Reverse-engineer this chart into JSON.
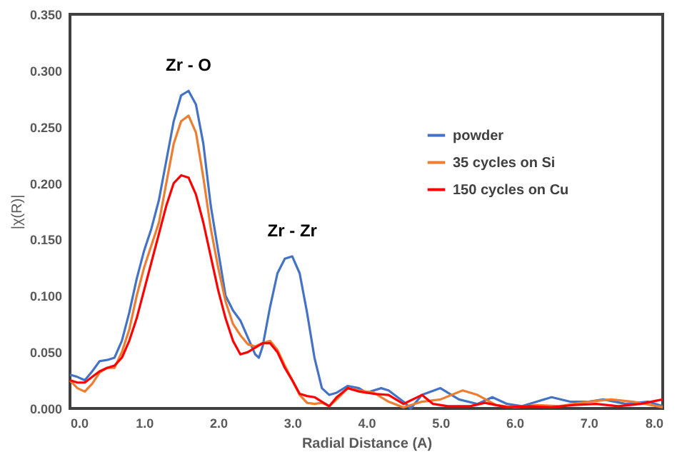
{
  "chart_data": {
    "type": "line",
    "xlabel": "Radial Distance (A)",
    "ylabel": "|χ(R)|",
    "xlim": [
      0,
      8
    ],
    "xticks": [
      {
        "value": 0,
        "label": "0.0"
      },
      {
        "value": 1,
        "label": "1.0"
      },
      {
        "value": 2,
        "label": "2.0"
      },
      {
        "value": 3,
        "label": "3.0"
      },
      {
        "value": 4,
        "label": "4.0"
      },
      {
        "value": 5,
        "label": "5.0"
      },
      {
        "value": 6,
        "label": "6.0"
      },
      {
        "value": 7,
        "label": "7.0"
      },
      {
        "value": 8,
        "label": "8.0"
      }
    ],
    "ylim": [
      0,
      0.35
    ],
    "yticks": [
      {
        "value": 0,
        "label": "0.000"
      },
      {
        "value": 0.05,
        "label": "0.050"
      },
      {
        "value": 0.1,
        "label": "0.100"
      },
      {
        "value": 0.15,
        "label": "0.150"
      },
      {
        "value": 0.2,
        "label": "0.200"
      },
      {
        "value": 0.25,
        "label": "0.250"
      },
      {
        "value": 0.3,
        "label": "0.300"
      },
      {
        "value": 0.35,
        "label": "0.350"
      }
    ],
    "grid": false,
    "legend": "right",
    "marker": "none",
    "line_style": "solid",
    "annotations": [
      {
        "text": "Zr - O",
        "x": 1.6,
        "y": 0.282
      },
      {
        "text": "Zr - Zr",
        "x": 3.0,
        "y": 0.135
      }
    ],
    "series": [
      {
        "name": "powder",
        "color": "#4472c4",
        "x": [
          0,
          0.1,
          0.2,
          0.3,
          0.4,
          0.5,
          0.6,
          0.7,
          0.8,
          0.9,
          1.0,
          1.1,
          1.2,
          1.3,
          1.4,
          1.5,
          1.6,
          1.7,
          1.8,
          1.9,
          2.0,
          2.1,
          2.2,
          2.3,
          2.4,
          2.5,
          2.55,
          2.6,
          2.7,
          2.8,
          2.9,
          3.0,
          3.1,
          3.2,
          3.3,
          3.4,
          3.5,
          3.6,
          3.75,
          3.9,
          4.0,
          4.2,
          4.3,
          4.5,
          4.6,
          4.75,
          5.0,
          5.25,
          5.5,
          5.7,
          5.9,
          6.1,
          6.3,
          6.5,
          6.75,
          7.0,
          7.2,
          7.5,
          7.8,
          8.0
        ],
        "values": [
          0.03,
          0.028,
          0.025,
          0.033,
          0.042,
          0.043,
          0.045,
          0.06,
          0.085,
          0.115,
          0.14,
          0.16,
          0.185,
          0.22,
          0.255,
          0.278,
          0.282,
          0.27,
          0.235,
          0.18,
          0.14,
          0.1,
          0.087,
          0.078,
          0.063,
          0.048,
          0.045,
          0.055,
          0.09,
          0.12,
          0.133,
          0.135,
          0.12,
          0.085,
          0.045,
          0.018,
          0.012,
          0.014,
          0.02,
          0.018,
          0.014,
          0.018,
          0.016,
          0.006,
          0.0,
          0.012,
          0.018,
          0.008,
          0.004,
          0.01,
          0.004,
          0.002,
          0.006,
          0.01,
          0.006,
          0.006,
          0.008,
          0.004,
          0.006,
          0.002
        ]
      },
      {
        "name": "35 cycles on Si",
        "color": "#ed7d31",
        "x": [
          0,
          0.1,
          0.2,
          0.3,
          0.4,
          0.5,
          0.6,
          0.7,
          0.8,
          0.9,
          1.0,
          1.1,
          1.2,
          1.3,
          1.4,
          1.5,
          1.6,
          1.7,
          1.8,
          1.9,
          2.0,
          2.1,
          2.2,
          2.3,
          2.4,
          2.5,
          2.6,
          2.7,
          2.8,
          2.9,
          3.0,
          3.1,
          3.2,
          3.3,
          3.4,
          3.5,
          3.6,
          3.75,
          3.9,
          4.1,
          4.3,
          4.5,
          4.75,
          5.0,
          5.3,
          5.5,
          5.75,
          6.0,
          6.3,
          6.6,
          7.0,
          7.3,
          7.6,
          8.0
        ],
        "values": [
          0.025,
          0.018,
          0.015,
          0.022,
          0.032,
          0.036,
          0.036,
          0.05,
          0.07,
          0.1,
          0.125,
          0.145,
          0.165,
          0.2,
          0.235,
          0.255,
          0.26,
          0.245,
          0.205,
          0.16,
          0.125,
          0.095,
          0.075,
          0.065,
          0.057,
          0.055,
          0.058,
          0.06,
          0.052,
          0.038,
          0.025,
          0.012,
          0.005,
          0.004,
          0.005,
          0.002,
          0.008,
          0.018,
          0.016,
          0.014,
          0.006,
          0.001,
          0.006,
          0.008,
          0.016,
          0.012,
          0.003,
          0.001,
          0.003,
          0.002,
          0.006,
          0.008,
          0.006,
          0.001
        ]
      },
      {
        "name": "150 cycles on Cu",
        "color": "#ff0000",
        "x": [
          0,
          0.1,
          0.2,
          0.3,
          0.4,
          0.5,
          0.6,
          0.7,
          0.8,
          0.9,
          1.0,
          1.1,
          1.2,
          1.3,
          1.4,
          1.5,
          1.6,
          1.7,
          1.8,
          1.9,
          2.0,
          2.1,
          2.2,
          2.3,
          2.4,
          2.5,
          2.6,
          2.7,
          2.8,
          2.9,
          3.0,
          3.1,
          3.2,
          3.3,
          3.4,
          3.5,
          3.6,
          3.75,
          3.9,
          4.1,
          4.3,
          4.5,
          4.75,
          4.9,
          5.1,
          5.4,
          5.6,
          5.9,
          6.2,
          6.5,
          6.8,
          7.1,
          7.4,
          7.7,
          8.0
        ],
        "values": [
          0.025,
          0.023,
          0.023,
          0.028,
          0.033,
          0.036,
          0.038,
          0.045,
          0.06,
          0.08,
          0.105,
          0.13,
          0.155,
          0.18,
          0.2,
          0.207,
          0.205,
          0.19,
          0.165,
          0.135,
          0.105,
          0.08,
          0.06,
          0.048,
          0.05,
          0.054,
          0.058,
          0.058,
          0.05,
          0.036,
          0.025,
          0.013,
          0.011,
          0.01,
          0.006,
          0.002,
          0.01,
          0.018,
          0.015,
          0.013,
          0.012,
          0.004,
          0.012,
          0.004,
          0.002,
          0.002,
          0.005,
          0.001,
          0.002,
          0.001,
          0.003,
          0.004,
          0.002,
          0.004,
          0.008
        ]
      }
    ]
  }
}
